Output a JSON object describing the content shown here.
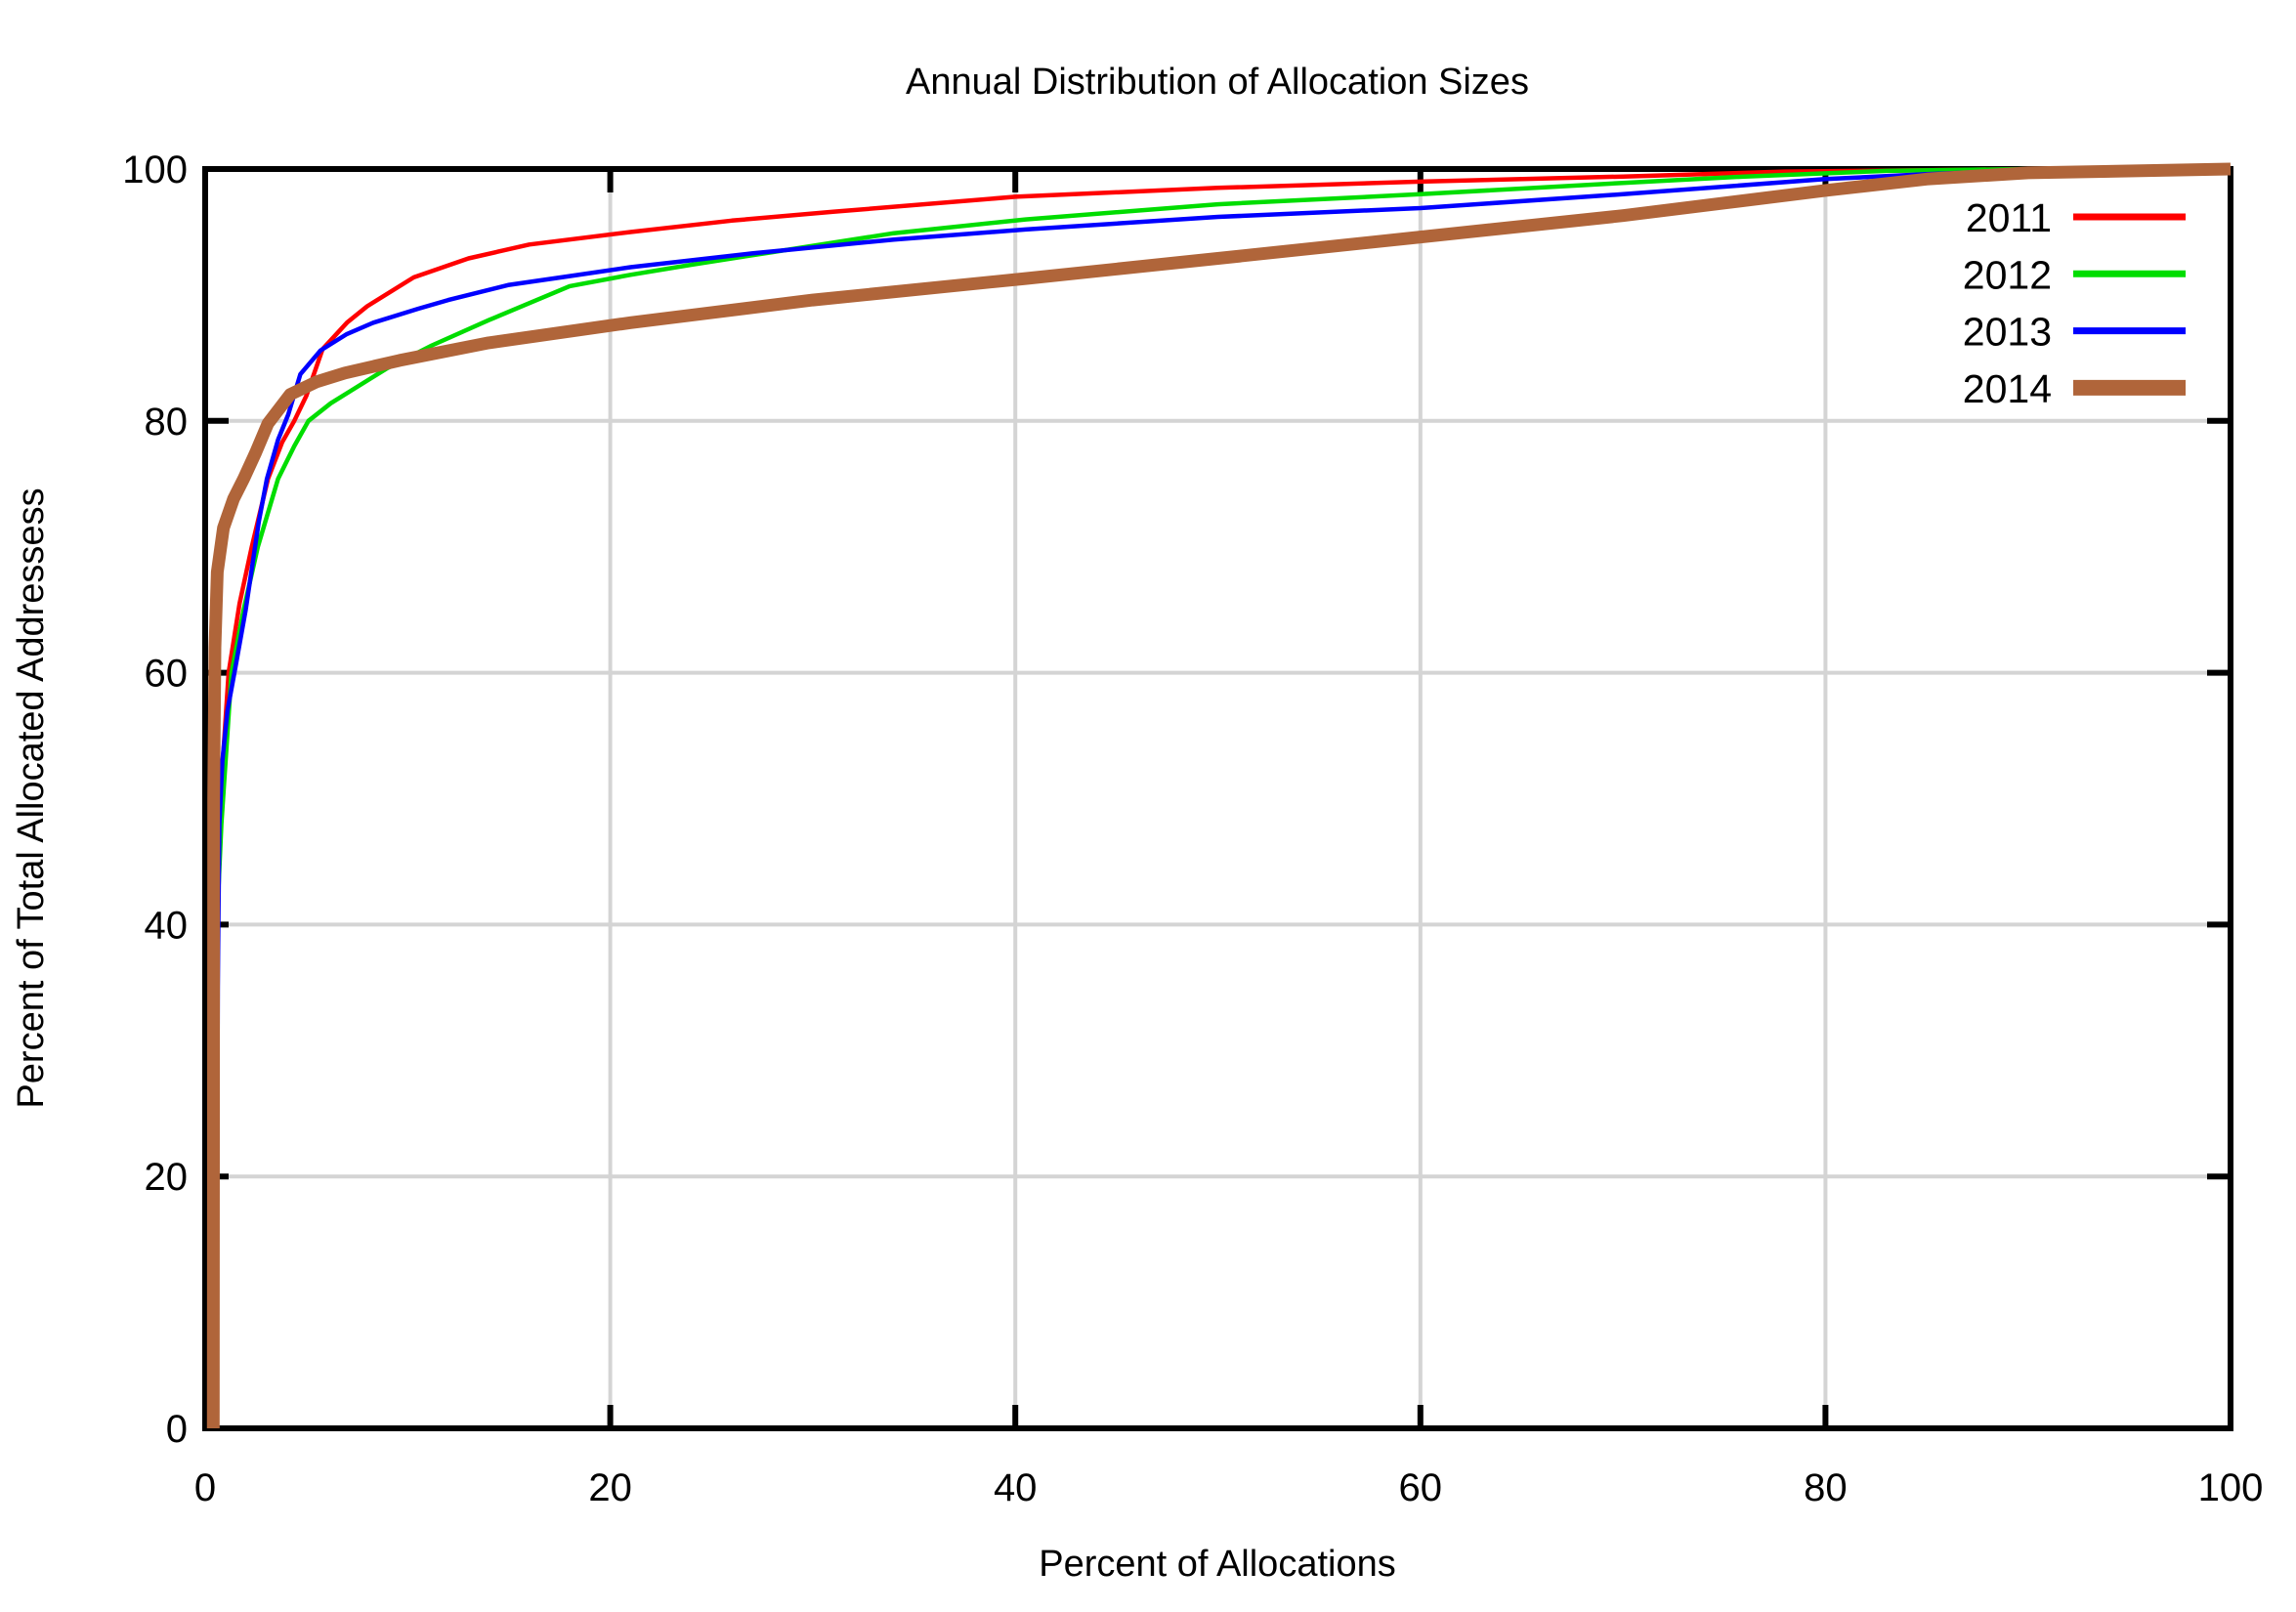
{
  "chart_data": {
    "type": "line",
    "title": "Annual Distribution of Allocation Sizes",
    "xlabel": "Percent of Allocations",
    "ylabel": "Percent of Total Allocated Addressess",
    "xlim": [
      0,
      100
    ],
    "ylim": [
      0,
      100
    ],
    "xticks": [
      0,
      20,
      40,
      60,
      80,
      100
    ],
    "yticks": [
      0,
      20,
      40,
      60,
      80,
      100
    ],
    "grid": true,
    "grid_color": "#d4d4d4",
    "border_color": "#000000",
    "legend_position": "top-right",
    "series": [
      {
        "name": "2011",
        "color": "#ff0000",
        "width": 4.5,
        "points": [
          [
            0.45,
            0
          ],
          [
            0.5,
            25
          ],
          [
            0.57,
            40
          ],
          [
            0.75,
            50
          ],
          [
            1.16,
            60
          ],
          [
            1.7,
            65.5
          ],
          [
            2.3,
            70
          ],
          [
            3.1,
            75.4
          ],
          [
            3.8,
            78.3
          ],
          [
            4.4,
            80
          ],
          [
            5.0,
            82
          ],
          [
            5.8,
            85.7
          ],
          [
            7.0,
            87.8
          ],
          [
            8.0,
            89.1
          ],
          [
            10.3,
            91.4
          ],
          [
            13,
            92.9
          ],
          [
            16,
            94.0
          ],
          [
            21,
            95.0
          ],
          [
            26,
            95.9
          ],
          [
            31,
            96.6
          ],
          [
            40,
            97.8
          ],
          [
            50,
            98.5
          ],
          [
            60,
            99.0
          ],
          [
            70,
            99.4
          ],
          [
            78,
            99.8
          ],
          [
            88,
            99.95
          ],
          [
            100,
            100
          ]
        ]
      },
      {
        "name": "2012",
        "color": "#00dd00",
        "width": 4.5,
        "points": [
          [
            0.5,
            0
          ],
          [
            0.55,
            30
          ],
          [
            0.63,
            42
          ],
          [
            0.8,
            48
          ],
          [
            1.3,
            60
          ],
          [
            1.9,
            65
          ],
          [
            2.6,
            70
          ],
          [
            3.6,
            75.4
          ],
          [
            4.4,
            78
          ],
          [
            5.1,
            80
          ],
          [
            6.2,
            81.4
          ],
          [
            7.2,
            82.4
          ],
          [
            9.0,
            84.2
          ],
          [
            11.2,
            86.0
          ],
          [
            14,
            88.0
          ],
          [
            18,
            90.7
          ],
          [
            21,
            91.6
          ],
          [
            24,
            92.4
          ],
          [
            28,
            93.4
          ],
          [
            34,
            94.9
          ],
          [
            40.5,
            96.0
          ],
          [
            50,
            97.2
          ],
          [
            60,
            98.0
          ],
          [
            70,
            98.9
          ],
          [
            76,
            99.4
          ],
          [
            83,
            99.85
          ],
          [
            90,
            100
          ],
          [
            100,
            100
          ]
        ]
      },
      {
        "name": "2013",
        "color": "#0000ff",
        "width": 4.5,
        "points": [
          [
            0.55,
            0
          ],
          [
            0.62,
            35
          ],
          [
            0.7,
            48
          ],
          [
            0.85,
            53
          ],
          [
            1.1,
            57
          ],
          [
            1.5,
            60.5
          ],
          [
            2.0,
            65
          ],
          [
            2.65,
            72
          ],
          [
            3.05,
            75.4
          ],
          [
            3.6,
            78.5
          ],
          [
            4.1,
            80.5
          ],
          [
            4.7,
            83.7
          ],
          [
            5.7,
            85.6
          ],
          [
            7.0,
            86.9
          ],
          [
            8.3,
            87.8
          ],
          [
            10.5,
            88.9
          ],
          [
            12,
            89.6
          ],
          [
            15,
            90.8
          ],
          [
            18,
            91.5
          ],
          [
            21,
            92.2
          ],
          [
            27,
            93.3
          ],
          [
            34,
            94.4
          ],
          [
            40.5,
            95.2
          ],
          [
            50,
            96.2
          ],
          [
            60,
            96.9
          ],
          [
            70,
            98.0
          ],
          [
            80,
            99.2
          ],
          [
            85,
            99.6
          ],
          [
            90,
            99.9
          ],
          [
            100,
            100
          ]
        ]
      },
      {
        "name": "2014",
        "color": "#b0653a",
        "width": 13,
        "points": [
          [
            0.4,
            0
          ],
          [
            0.42,
            50
          ],
          [
            0.48,
            62
          ],
          [
            0.6,
            68
          ],
          [
            0.9,
            71.5
          ],
          [
            1.4,
            73.8
          ],
          [
            1.9,
            75.4
          ],
          [
            2.5,
            77.5
          ],
          [
            3.1,
            79.8
          ],
          [
            4.2,
            82.1
          ],
          [
            5.5,
            83.1
          ],
          [
            6.9,
            83.8
          ],
          [
            9.6,
            84.8
          ],
          [
            14,
            86.2
          ],
          [
            21,
            87.8
          ],
          [
            30,
            89.6
          ],
          [
            40.5,
            91.3
          ],
          [
            50,
            92.9
          ],
          [
            60,
            94.6
          ],
          [
            70,
            96.3
          ],
          [
            75,
            97.3
          ],
          [
            80,
            98.3
          ],
          [
            85,
            99.2
          ],
          [
            90,
            99.7
          ],
          [
            100,
            100
          ]
        ]
      }
    ]
  }
}
